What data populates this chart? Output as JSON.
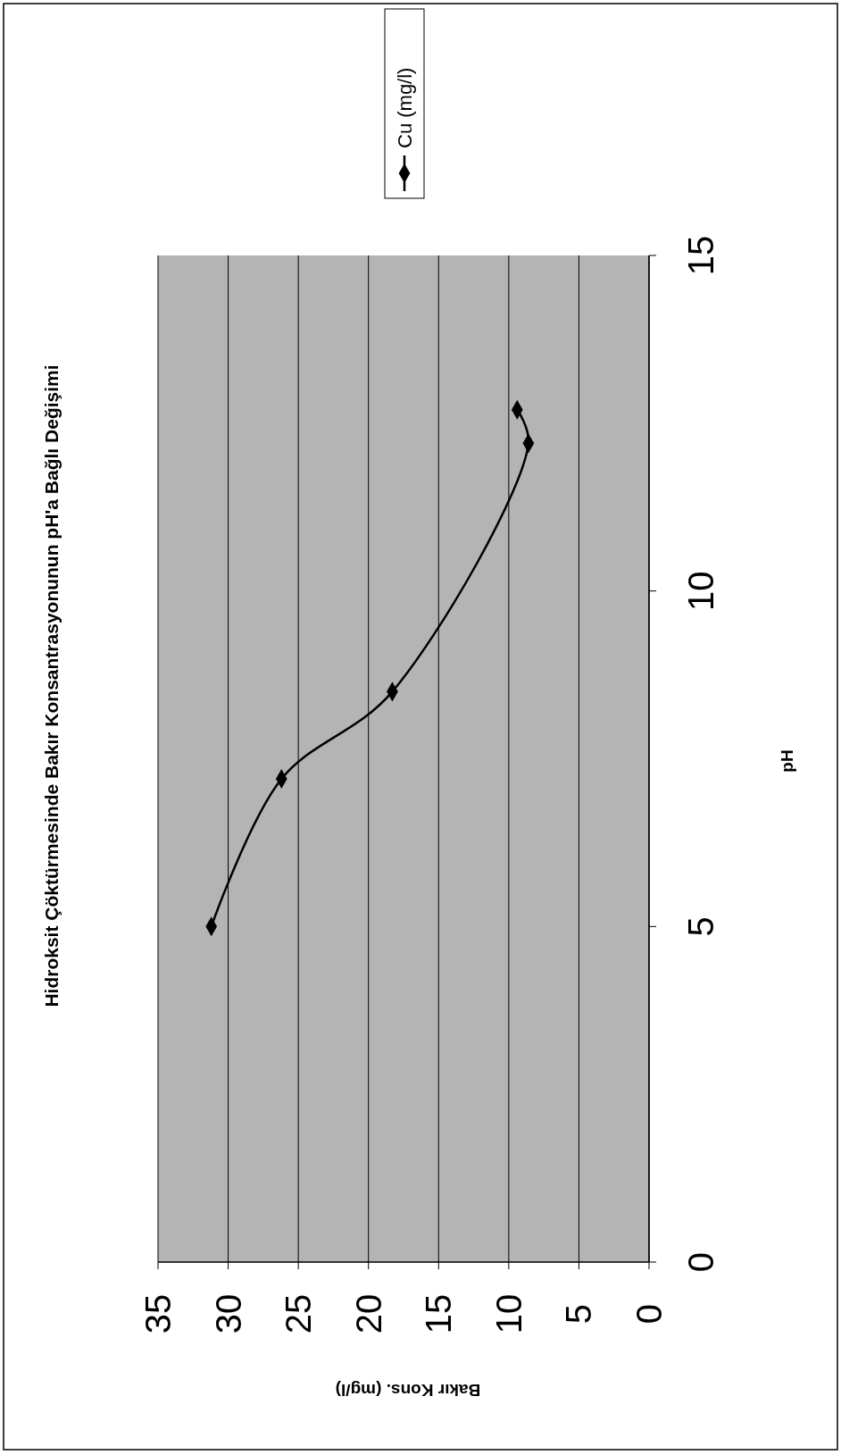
{
  "chart_data": {
    "type": "line",
    "title": "Hidroksit Çöktürmesinde Bakır Konsantrasyonunun pH'a Bağlı Değişimi",
    "xlabel": "Bakır Kons. (mg/l)",
    "ylabel": "pH",
    "x": [
      31.2,
      26.2,
      18.3,
      8.6,
      9.4
    ],
    "series": [
      {
        "name": "Cu (mg/l)",
        "color": "#000000",
        "values": [
          5,
          7.2,
          8.5,
          12.2,
          12.7
        ]
      }
    ],
    "xlim": [
      35,
      0
    ],
    "xticks": [
      35,
      30,
      25,
      20,
      15,
      10,
      5,
      0
    ],
    "ylim": [
      0,
      15
    ],
    "yticks": [
      0,
      5,
      10,
      15
    ],
    "grid": "x",
    "legend": "top right",
    "marker": "diamond",
    "line_style": "solid"
  }
}
